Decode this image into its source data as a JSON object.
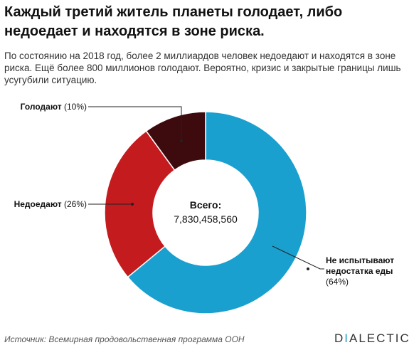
{
  "title": "Каждый третий житель планеты голодает, либо недоедает и находятся в зоне риска.",
  "subtitle": "По состоянию на 2018 год, более 2 миллиардов человек недоедают и находятся в зоне риска. Ещё более 800 миллионов голодают. Вероятно, кризис и закрытые границы лишь усугубили ситуацию.",
  "source": "Источник: Всемирная продовольственная программа ООН",
  "brand": {
    "first": "D",
    "accent": "I",
    "rest": "ALECTIC"
  },
  "colors": {
    "brand_accent": "#1aa0cf"
  },
  "chart_data": {
    "type": "pie",
    "donut": true,
    "center_label": "Всего:",
    "center_value": "7,830,458,560",
    "slices": [
      {
        "name": "Не испытывают недостатка еды",
        "pct_label": "(64%)",
        "value": 64,
        "color": "#1aa0cf"
      },
      {
        "name": "Недоедают",
        "pct_label": "(26%)",
        "value": 26,
        "color": "#c41b1e"
      },
      {
        "name": "Голодают",
        "pct_label": "(10%)",
        "value": 10,
        "color": "#3d0a0d"
      }
    ]
  }
}
